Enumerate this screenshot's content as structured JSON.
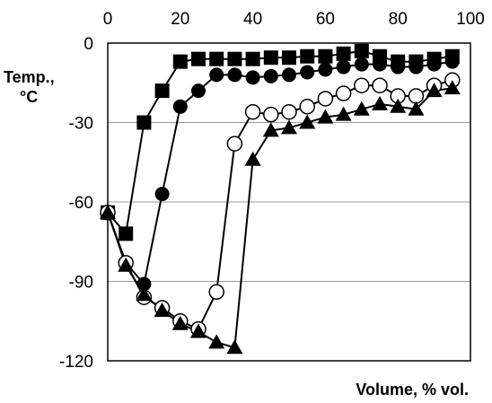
{
  "chart_data": {
    "type": "line",
    "xlabel": "Volume, % vol.",
    "ylabel": "Temp., °C",
    "ylabel_lines": [
      "Temp.,",
      "°C"
    ],
    "xlim": [
      0,
      100
    ],
    "ylim": [
      -120,
      0
    ],
    "x_ticks": [
      0,
      20,
      40,
      60,
      80,
      100
    ],
    "y_ticks": [
      0,
      -30,
      -60,
      -90,
      -120
    ],
    "grid": "horizontal",
    "legend": "none",
    "series": [
      {
        "marker": "filled-square",
        "x": [
          0,
          5,
          10,
          15,
          20,
          25,
          30,
          35,
          40,
          45,
          50,
          55,
          60,
          65,
          70,
          75,
          80,
          85,
          90,
          95
        ],
        "y": [
          -64,
          -72,
          -30,
          -18,
          -7,
          -6,
          -6,
          -6,
          -6,
          -5.5,
          -5.5,
          -5,
          -5,
          -4,
          -3,
          -5,
          -7,
          -7,
          -6,
          -5
        ]
      },
      {
        "marker": "filled-circle",
        "x": [
          0,
          5,
          10,
          15,
          20,
          25,
          30,
          35,
          40,
          45,
          50,
          55,
          60,
          65,
          70,
          75,
          80,
          85,
          90,
          95
        ],
        "y": [
          -64,
          -83,
          -91,
          -57,
          -24,
          -18,
          -12,
          -12,
          -13,
          -12.5,
          -12,
          -11,
          -10,
          -9,
          -8,
          -8,
          -9,
          -9,
          -8,
          -7
        ]
      },
      {
        "marker": "open-circle",
        "x": [
          0,
          5,
          10,
          15,
          20,
          25,
          30,
          35,
          40,
          45,
          50,
          55,
          60,
          65,
          70,
          75,
          80,
          85,
          90,
          95
        ],
        "y": [
          -64,
          -83,
          -96,
          -100,
          -105,
          -108,
          -94,
          -38,
          -26,
          -27,
          -26,
          -24,
          -21,
          -19,
          -16,
          -16,
          -20,
          -20,
          -16,
          -14
        ]
      },
      {
        "marker": "filled-triangle",
        "x": [
          0,
          5,
          10,
          15,
          20,
          25,
          30,
          35,
          40,
          45,
          50,
          55,
          60,
          65,
          70,
          75,
          80,
          85,
          90,
          95
        ],
        "y": [
          -64,
          -84,
          -95,
          -101,
          -106,
          -109,
          -113,
          -115,
          -44,
          -33,
          -32,
          -30,
          -28,
          -27,
          -25,
          -23,
          -24,
          -25,
          -18,
          -17
        ]
      }
    ]
  }
}
